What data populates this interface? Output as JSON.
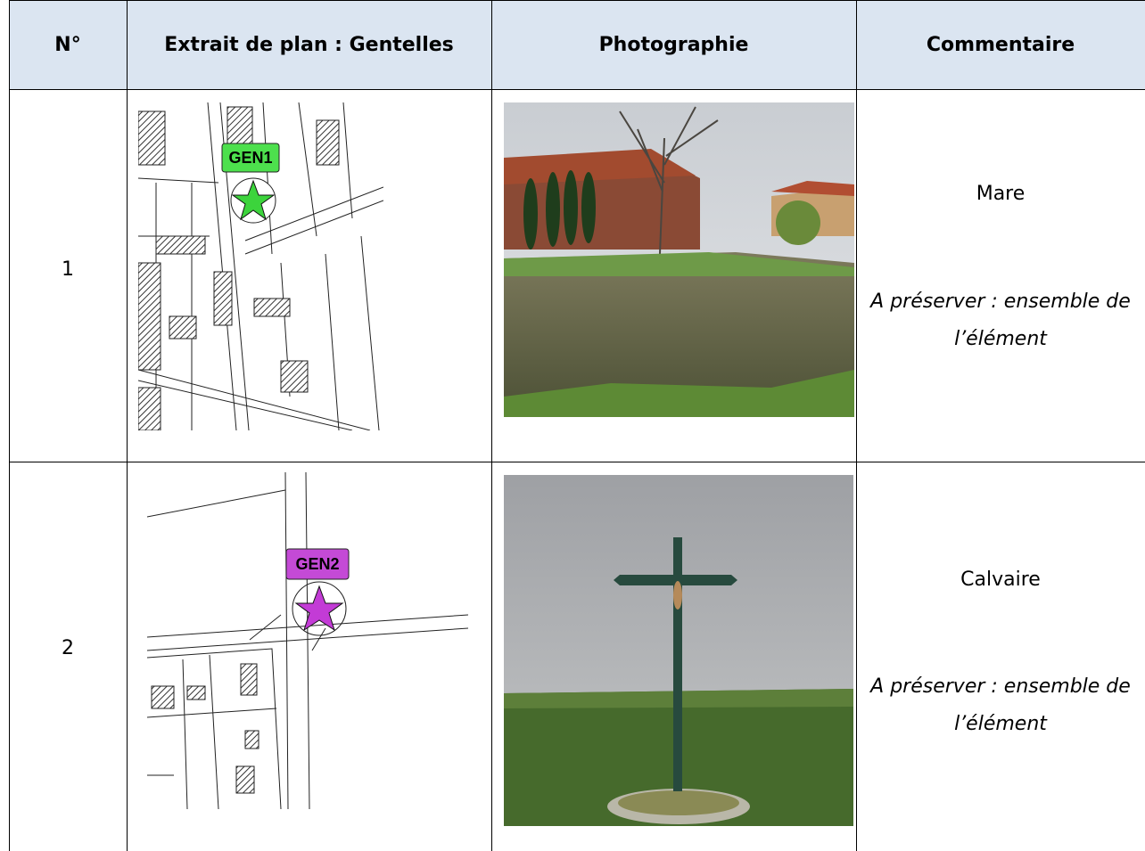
{
  "table": {
    "header": [
      "N°",
      "Extrait de plan : Gentelles",
      "Photographie",
      "Commentaire"
    ],
    "rows": [
      {
        "number": "1",
        "map_marker": "GEN1",
        "comment": "Mare",
        "note": "A préserver : ensemble de l’élément"
      },
      {
        "number": "2",
        "map_marker": "GEN2",
        "comment": "Calvaire",
        "note": "A préserver : ensemble de l’élément"
      }
    ]
  }
}
